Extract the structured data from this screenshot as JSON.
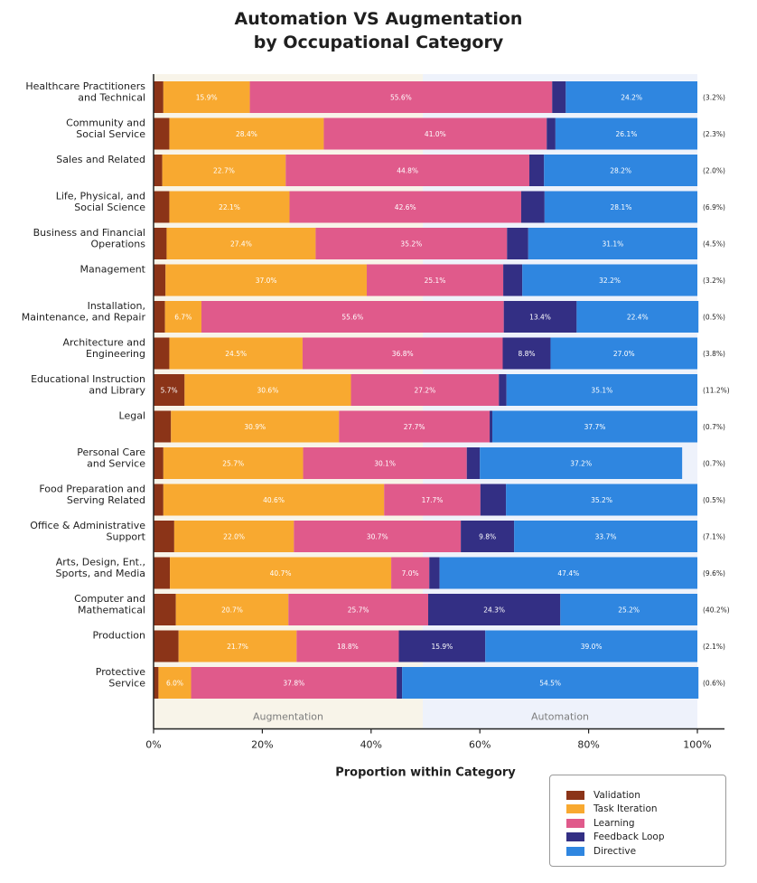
{
  "chart_data": {
    "type": "bar",
    "orientation": "horizontal",
    "stacked": true,
    "title": [
      "Automation VS Augmentation",
      "by Occupational Category"
    ],
    "xlabel": "Proportion within Category",
    "xlim": [
      0,
      100
    ],
    "x_ticks": [
      "0%",
      "20%",
      "40%",
      "60%",
      "80%",
      "100%"
    ],
    "zones": [
      {
        "label": "Augmentation",
        "from": 0,
        "to": 49.5,
        "color": "#f8f4e9"
      },
      {
        "label": "Automation",
        "from": 49.5,
        "to": 100,
        "color": "#eef2fb"
      }
    ],
    "series": [
      {
        "name": "Validation",
        "color": "#8b3418"
      },
      {
        "name": "Task Iteration",
        "color": "#f8a930"
      },
      {
        "name": "Learning",
        "color": "#e05a8b"
      },
      {
        "name": "Feedback Loop",
        "color": "#332f84"
      },
      {
        "name": "Directive",
        "color": "#2f86e0"
      }
    ],
    "categories": [
      {
        "label": [
          "Healthcare Practitioners",
          "and Technical"
        ],
        "share": "(3.2%)",
        "values": [
          1.8,
          15.9,
          55.6,
          2.5,
          24.2
        ],
        "labels": [
          "",
          "15.9%",
          "55.6%",
          "",
          "24.2%"
        ]
      },
      {
        "label": [
          "Community and",
          "Social Service"
        ],
        "share": "(2.3%)",
        "values": [
          2.9,
          28.4,
          41.0,
          1.6,
          26.1
        ],
        "labels": [
          "",
          "28.4%",
          "41.0%",
          "",
          "26.1%"
        ]
      },
      {
        "label": [
          "Sales and Related"
        ],
        "share": "(2.0%)",
        "values": [
          1.6,
          22.7,
          44.8,
          2.7,
          28.2
        ],
        "labels": [
          "",
          "22.7%",
          "44.8%",
          "",
          "28.2%"
        ]
      },
      {
        "label": [
          "Life, Physical, and",
          "Social Science"
        ],
        "share": "(6.9%)",
        "values": [
          2.9,
          22.1,
          42.6,
          4.3,
          28.1
        ],
        "labels": [
          "",
          "22.1%",
          "42.6%",
          "",
          "28.1%"
        ]
      },
      {
        "label": [
          "Business and Financial",
          "Operations"
        ],
        "share": "(4.5%)",
        "values": [
          2.4,
          27.4,
          35.2,
          3.9,
          31.1
        ],
        "labels": [
          "",
          "27.4%",
          "35.2%",
          "",
          "31.1%"
        ]
      },
      {
        "label": [
          "Management"
        ],
        "share": "(3.2%)",
        "values": [
          2.2,
          37.0,
          25.1,
          3.5,
          32.2
        ],
        "labels": [
          "",
          "37.0%",
          "25.1%",
          "",
          "32.2%"
        ]
      },
      {
        "label": [
          "Installation,",
          "Maintenance, and Repair"
        ],
        "share": "(0.5%)",
        "values": [
          2.1,
          6.7,
          55.6,
          13.4,
          22.4
        ],
        "labels": [
          "",
          "6.7%",
          "55.6%",
          "13.4%",
          "22.4%"
        ]
      },
      {
        "label": [
          "Architecture and",
          "Engineering"
        ],
        "share": "(3.8%)",
        "values": [
          2.9,
          24.5,
          36.8,
          8.8,
          27.0
        ],
        "labels": [
          "",
          "24.5%",
          "36.8%",
          "8.8%",
          "27.0%"
        ]
      },
      {
        "label": [
          "Educational Instruction",
          "and Library"
        ],
        "share": "(11.2%)",
        "values": [
          5.7,
          30.6,
          27.2,
          1.4,
          35.1
        ],
        "labels": [
          "5.7%",
          "30.6%",
          "27.2%",
          "",
          "35.1%"
        ]
      },
      {
        "label": [
          "Legal"
        ],
        "share": "(0.7%)",
        "values": [
          3.2,
          30.9,
          27.7,
          0.5,
          37.7
        ],
        "labels": [
          "",
          "30.9%",
          "27.7%",
          "",
          "37.7%"
        ]
      },
      {
        "label": [
          "Personal Care",
          "and Service"
        ],
        "share": "(0.7%)",
        "values": [
          1.8,
          25.7,
          30.1,
          2.4,
          37.2
        ],
        "labels": [
          "",
          "25.7%",
          "30.1%",
          "",
          "37.2%"
        ]
      },
      {
        "label": [
          "Food Preparation and",
          "Serving Related"
        ],
        "share": "(0.5%)",
        "values": [
          1.8,
          40.6,
          17.7,
          4.7,
          35.2
        ],
        "labels": [
          "",
          "40.6%",
          "17.7%",
          "",
          "35.2%"
        ]
      },
      {
        "label": [
          "Office & Administrative",
          "Support"
        ],
        "share": "(7.1%)",
        "values": [
          3.8,
          22.0,
          30.7,
          9.8,
          33.7
        ],
        "labels": [
          "",
          "22.0%",
          "30.7%",
          "9.8%",
          "33.7%"
        ]
      },
      {
        "label": [
          "Arts, Design, Ent.,",
          "Sports, and Media"
        ],
        "share": "(9.6%)",
        "values": [
          3.0,
          40.7,
          7.0,
          1.9,
          47.4
        ],
        "labels": [
          "",
          "40.7%",
          "7.0%",
          "",
          "47.4%"
        ]
      },
      {
        "label": [
          "Computer and",
          "Mathematical"
        ],
        "share": "(40.2%)",
        "values": [
          4.1,
          20.7,
          25.7,
          24.3,
          25.2
        ],
        "labels": [
          "",
          "20.7%",
          "25.7%",
          "24.3%",
          "25.2%"
        ]
      },
      {
        "label": [
          "Production"
        ],
        "share": "(2.1%)",
        "values": [
          4.6,
          21.7,
          18.8,
          15.9,
          39.0
        ],
        "labels": [
          "",
          "21.7%",
          "18.8%",
          "15.9%",
          "39.0%"
        ]
      },
      {
        "label": [
          "Protective",
          "Service"
        ],
        "share": "(0.6%)",
        "values": [
          0.9,
          6.0,
          37.8,
          1.0,
          54.5
        ],
        "labels": [
          "",
          "6.0%",
          "37.8%",
          "",
          "54.5%"
        ]
      }
    ]
  }
}
